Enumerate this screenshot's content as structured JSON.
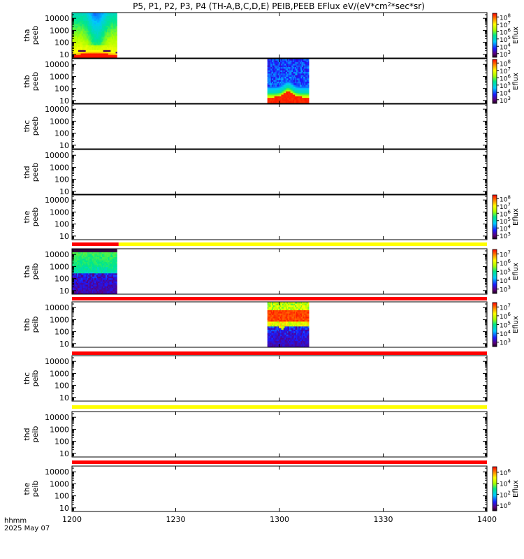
{
  "chart_data": {
    "type": "heatmap",
    "title": "P5, P1, P2, P3, P4 (TH-A,B,C,D,E) PEIB,PEEB EFlux eV/(eV*cm^2*sec*sr)",
    "xlabel": "hhmm",
    "date": "2025 May 07",
    "x_ticks": [
      "1200",
      "1230",
      "1300",
      "1330",
      "1400"
    ],
    "x_tick_values_min": [
      0,
      30,
      60,
      90,
      120
    ],
    "xlim_min": [
      0,
      120
    ],
    "colorbar_label": "Eflux",
    "panels": [
      {
        "probe": "tha",
        "instrument": "peeb",
        "ylabel": [
          "tha",
          "peeb"
        ],
        "y_ticks": [
          "10",
          "100",
          "1000",
          "10000"
        ],
        "ylim": [
          5,
          30000
        ],
        "data_spans_min": [
          [
            0,
            13
          ]
        ],
        "pattern": "electron-tha",
        "colorbar": {
          "exponents": [
            "3",
            "4",
            "5",
            "6",
            "7",
            "8"
          ]
        }
      },
      {
        "probe": "thb",
        "instrument": "peeb",
        "ylabel": [
          "thb",
          "peeb"
        ],
        "y_ticks": [
          "10",
          "100",
          "1000",
          "10000"
        ],
        "ylim": [
          5,
          30000
        ],
        "data_spans_min": [
          [
            56.5,
            68.5
          ]
        ],
        "pattern": "electron-thb",
        "colorbar": {
          "exponents": [
            "3",
            "4",
            "5",
            "6",
            "7",
            "8"
          ]
        }
      },
      {
        "probe": "thc",
        "instrument": "peeb",
        "ylabel": [
          "thc",
          "peeb"
        ],
        "y_ticks": [
          "10",
          "100",
          "1000",
          "10000"
        ],
        "ylim": [
          5,
          30000
        ],
        "data_spans_min": [],
        "pattern": "none",
        "colorbar": null
      },
      {
        "probe": "thd",
        "instrument": "peeb",
        "ylabel": [
          "thd",
          "peeb"
        ],
        "y_ticks": [
          "10",
          "100",
          "1000",
          "10000"
        ],
        "ylim": [
          5,
          30000
        ],
        "data_spans_min": [],
        "pattern": "none",
        "colorbar": null
      },
      {
        "probe": "the",
        "instrument": "peeb",
        "ylabel": [
          "the",
          "peeb"
        ],
        "y_ticks": [
          "10",
          "100",
          "1000",
          "10000"
        ],
        "ylim": [
          5,
          30000
        ],
        "data_spans_min": [],
        "pattern": "none",
        "colorbar": {
          "exponents": [
            "3",
            "4",
            "5",
            "6",
            "7",
            "8"
          ]
        }
      },
      {
        "probe": "tha",
        "instrument": "peib",
        "ylabel": [
          "tha",
          "peib"
        ],
        "y_ticks": [
          "10",
          "100",
          "1000",
          "10000"
        ],
        "ylim": [
          5,
          30000
        ],
        "data_spans_min": [
          [
            0,
            13
          ]
        ],
        "pattern": "ion-tha",
        "colorbar": {
          "exponents": [
            "3",
            "4",
            "5",
            "6",
            "7"
          ]
        }
      },
      {
        "probe": "thb",
        "instrument": "peib",
        "ylabel": [
          "thb",
          "peib"
        ],
        "y_ticks": [
          "10",
          "100",
          "1000",
          "10000"
        ],
        "ylim": [
          5,
          30000
        ],
        "data_spans_min": [
          [
            56.5,
            68.5
          ]
        ],
        "pattern": "ion-thb",
        "colorbar": {
          "exponents": [
            "3",
            "4",
            "5",
            "6",
            "7"
          ]
        }
      },
      {
        "probe": "thc",
        "instrument": "peib",
        "ylabel": [
          "thc",
          "peib"
        ],
        "y_ticks": [
          "10",
          "100",
          "1000",
          "10000"
        ],
        "ylim": [
          5,
          30000
        ],
        "data_spans_min": [],
        "pattern": "none",
        "colorbar": null
      },
      {
        "probe": "thd",
        "instrument": "peib",
        "ylabel": [
          "thd",
          "peib"
        ],
        "y_ticks": [
          "10",
          "100",
          "1000",
          "10000"
        ],
        "ylim": [
          5,
          30000
        ],
        "data_spans_min": [],
        "pattern": "none",
        "colorbar": null
      },
      {
        "probe": "the",
        "instrument": "peib",
        "ylabel": [
          "the",
          "peib"
        ],
        "y_ticks": [
          "10",
          "100",
          "1000",
          "10000"
        ],
        "ylim": [
          5,
          30000
        ],
        "data_spans_min": [],
        "pattern": "none",
        "colorbar": {
          "exponents": [
            "0",
            "2",
            "4",
            "6"
          ]
        }
      }
    ],
    "status_bars": [
      {
        "after_panel": 4,
        "segments": [
          {
            "from_min": 0,
            "to_min": 13.5,
            "color": "#ff0000"
          },
          {
            "from_min": 13.5,
            "to_min": 120,
            "color": "#ffff00"
          }
        ]
      },
      {
        "after_panel": 5,
        "segments": [
          {
            "from_min": 0,
            "to_min": 120,
            "color": "#ff0000"
          }
        ]
      },
      {
        "after_panel": 6,
        "segments": [
          {
            "from_min": 0,
            "to_min": 120,
            "color": "#ff0000"
          }
        ]
      },
      {
        "after_panel": 7,
        "segments": [
          {
            "from_min": 0,
            "to_min": 120,
            "color": "#ffff00"
          }
        ]
      },
      {
        "after_panel": 8,
        "segments": [
          {
            "from_min": 0,
            "to_min": 120,
            "color": "#ff0000"
          }
        ]
      }
    ],
    "colors": {
      "status_red": "#ff0000",
      "status_yellow": "#ffff00"
    }
  }
}
